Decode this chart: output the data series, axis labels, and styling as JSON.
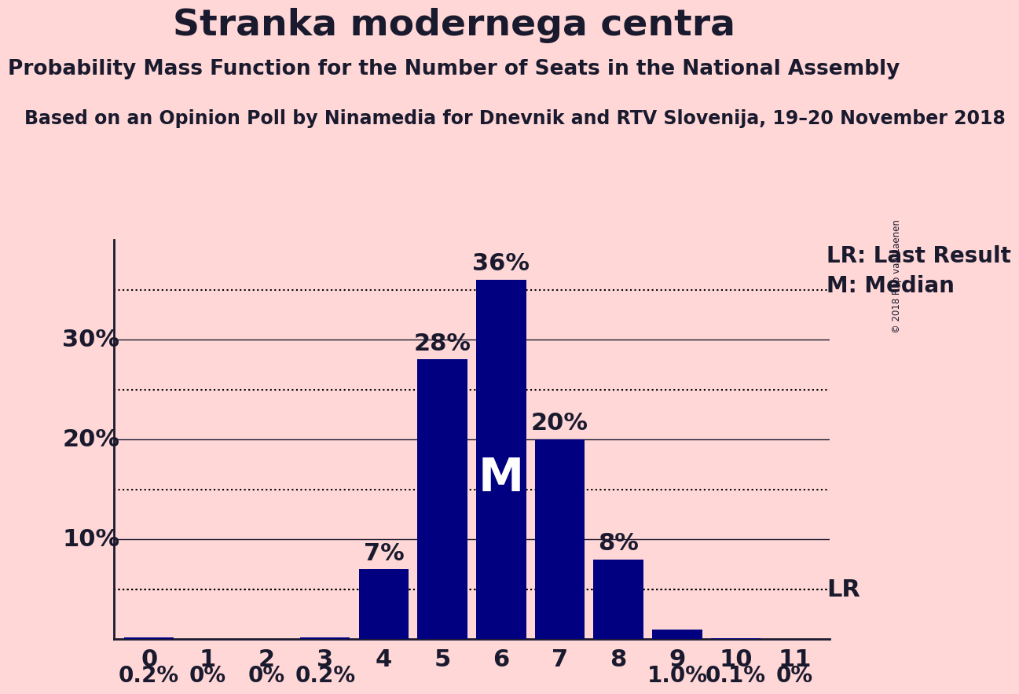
{
  "title": "Stranka modernega centra",
  "subtitle1": "Probability Mass Function for the Number of Seats in the National Assembly",
  "subtitle2": "Based on an Opinion Poll by Ninamedia for Dnevnik and RTV Slovenija, 19–20 November 2018",
  "copyright": "© 2018 Filip van Laenen",
  "categories": [
    0,
    1,
    2,
    3,
    4,
    5,
    6,
    7,
    8,
    9,
    10,
    11
  ],
  "values": [
    0.2,
    0.0,
    0.0,
    0.2,
    7.0,
    28.0,
    36.0,
    20.0,
    8.0,
    1.0,
    0.1,
    0.0
  ],
  "bar_color": "#000080",
  "background_color": "#ffd7d7",
  "median": 6,
  "last_result": 10,
  "last_result_value": 5.0,
  "dotted_yticks": [
    5,
    15,
    25,
    35
  ],
  "solid_yticks": [
    10,
    20,
    30
  ],
  "ylabel_values": [
    10,
    20,
    30
  ],
  "ylim": [
    0,
    40
  ],
  "bar_labels": [
    "0.2%",
    "0%",
    "0%",
    "0.2%",
    "7%",
    "28%",
    "36%",
    "20%",
    "8%",
    "1.0%",
    "0.1%",
    "0%"
  ],
  "large_label_threshold": 7.0,
  "title_fontsize": 34,
  "subtitle1_fontsize": 19,
  "subtitle2_fontsize": 17,
  "bar_label_fontsize_large": 22,
  "bar_label_fontsize_small": 20,
  "median_label_fontsize": 42,
  "lr_label_fontsize": 22,
  "legend_fontsize": 20,
  "tick_fontsize": 22,
  "ylabel_fontsize": 22,
  "text_color": "#1a1a2e"
}
